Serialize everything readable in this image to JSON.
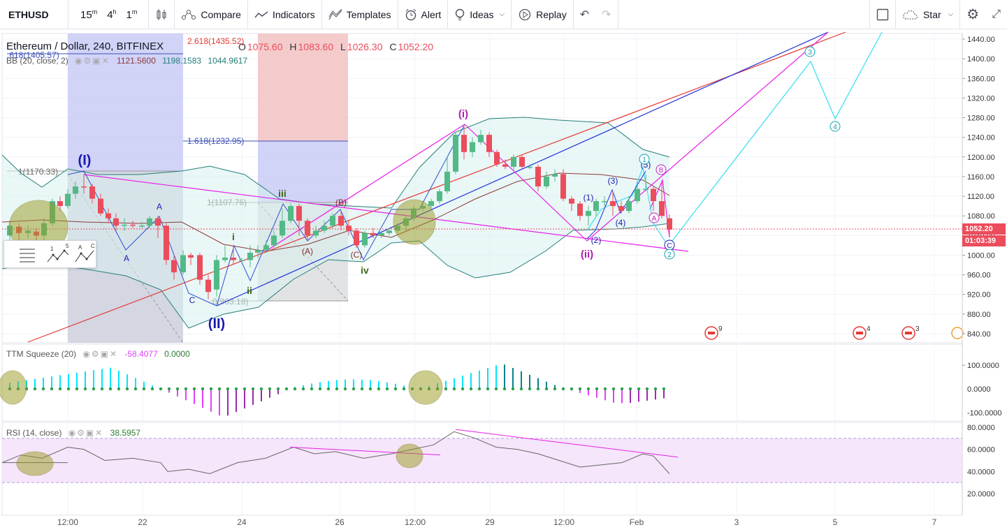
{
  "toolbar": {
    "symbol": "ETHUSD",
    "intervals": [
      "15",
      "4",
      "1"
    ],
    "interval_units": [
      "m",
      "h",
      "m"
    ],
    "compare": "Compare",
    "indicators": "Indicators",
    "templates": "Templates",
    "alert": "Alert",
    "ideas": "Ideas",
    "replay": "Replay",
    "star": "Star"
  },
  "legend": {
    "title": "Ethereum / Dollar, 240, BITFINEX",
    "o_label": "O",
    "o": "1075.60",
    "h_label": "H",
    "h": "1083.60",
    "l_label": "L",
    "l": "1026.30",
    "c_label": "C",
    "c": "1052.20",
    "bb_label": "BB (20, close, 2)",
    "bb_values": [
      "1121.5600",
      "1198.1583",
      "1044.9617"
    ]
  },
  "fib_labels": {
    "l2618": "2.618(1435.52)",
    "l1618a": ".618(1405.57)",
    "l1618b": "1.618(1232.95)",
    "l1a": "1(1170.33)",
    "l1b": "1(1107.76)",
    "l0": "0(903.18)"
  },
  "waves": {
    "I": "(I)",
    "II": "(II)",
    "i_big": "(i)",
    "ii_big": "(ii)",
    "i": "i",
    "ii": "ii",
    "iii": "iii",
    "iv": "iv",
    "A": "A",
    "B": "B",
    "C": "C",
    "A2": "(A)",
    "B2": "(B)",
    "C2": "(C)",
    "n1": "(1)",
    "n2": "(2)",
    "n3": "(3)",
    "n4": "(4)",
    "n5": "(5)",
    "cA": "A",
    "cB": "B",
    "cC": "C",
    "cyan2": "2",
    "cyan3": "3",
    "cyan4": "4",
    "cyan1": "1",
    "tool_1": "1",
    "tool_5": "5",
    "tool_a": "A",
    "tool_c": "C"
  },
  "price_axis": {
    "ticks": [
      "1440.00",
      "1400.00",
      "1360.00",
      "1320.00",
      "1280.00",
      "1240.00",
      "1200.00",
      "1160.00",
      "1120.00",
      "1080.00",
      "1040.00",
      "1000.00",
      "960.00",
      "920.00",
      "880.00",
      "840.00"
    ],
    "last_price": "1052.20",
    "countdown": "01:03:39"
  },
  "ttm": {
    "label": "TTM Squeeze (20)",
    "v1": "-58.4077",
    "v2": "0.0000",
    "ticks": [
      "100.0000",
      "0.0000",
      "-100.0000"
    ]
  },
  "rsi": {
    "label": "RSI (14, close)",
    "value": "38.5957",
    "ticks": [
      "80.0000",
      "60.0000",
      "40.0000",
      "20.0000"
    ]
  },
  "time_axis": [
    "12:00",
    "22",
    "24",
    "26",
    "12:00",
    "29",
    "12:00",
    "Feb",
    "3",
    "5",
    "7"
  ],
  "events": [
    "9",
    "4",
    "3"
  ],
  "colors": {
    "up": "#53b987",
    "down": "#eb4d5c",
    "bb": "#26807a",
    "fib_blue": "#3f51b5",
    "magenta": "#e91ee9",
    "cyan": "#40e0f0",
    "red_line": "#e53935"
  }
}
